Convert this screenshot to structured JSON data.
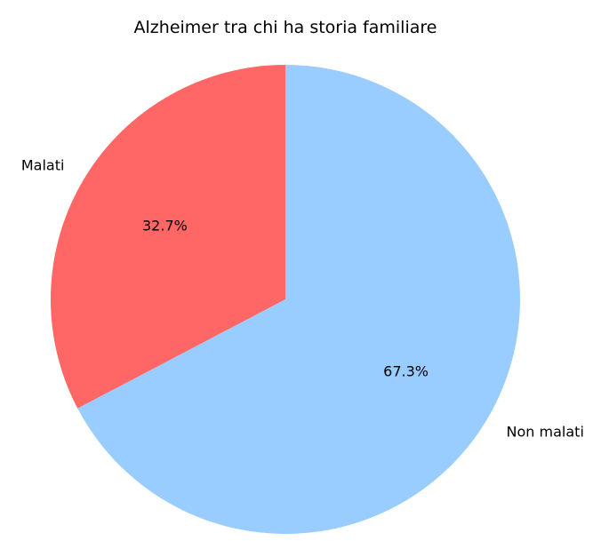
{
  "chart_data": {
    "type": "pie",
    "title": "Alzheimer tra chi ha storia familiare",
    "categories": [
      "Malati",
      "Non malati"
    ],
    "values": [
      32.7,
      67.3
    ],
    "percent_labels": [
      "32.7%",
      "67.3%"
    ],
    "colors": [
      "#ff6666",
      "#99ccff"
    ],
    "start_angle_deg": 90,
    "direction": "counterclockwise",
    "legend": "none"
  }
}
